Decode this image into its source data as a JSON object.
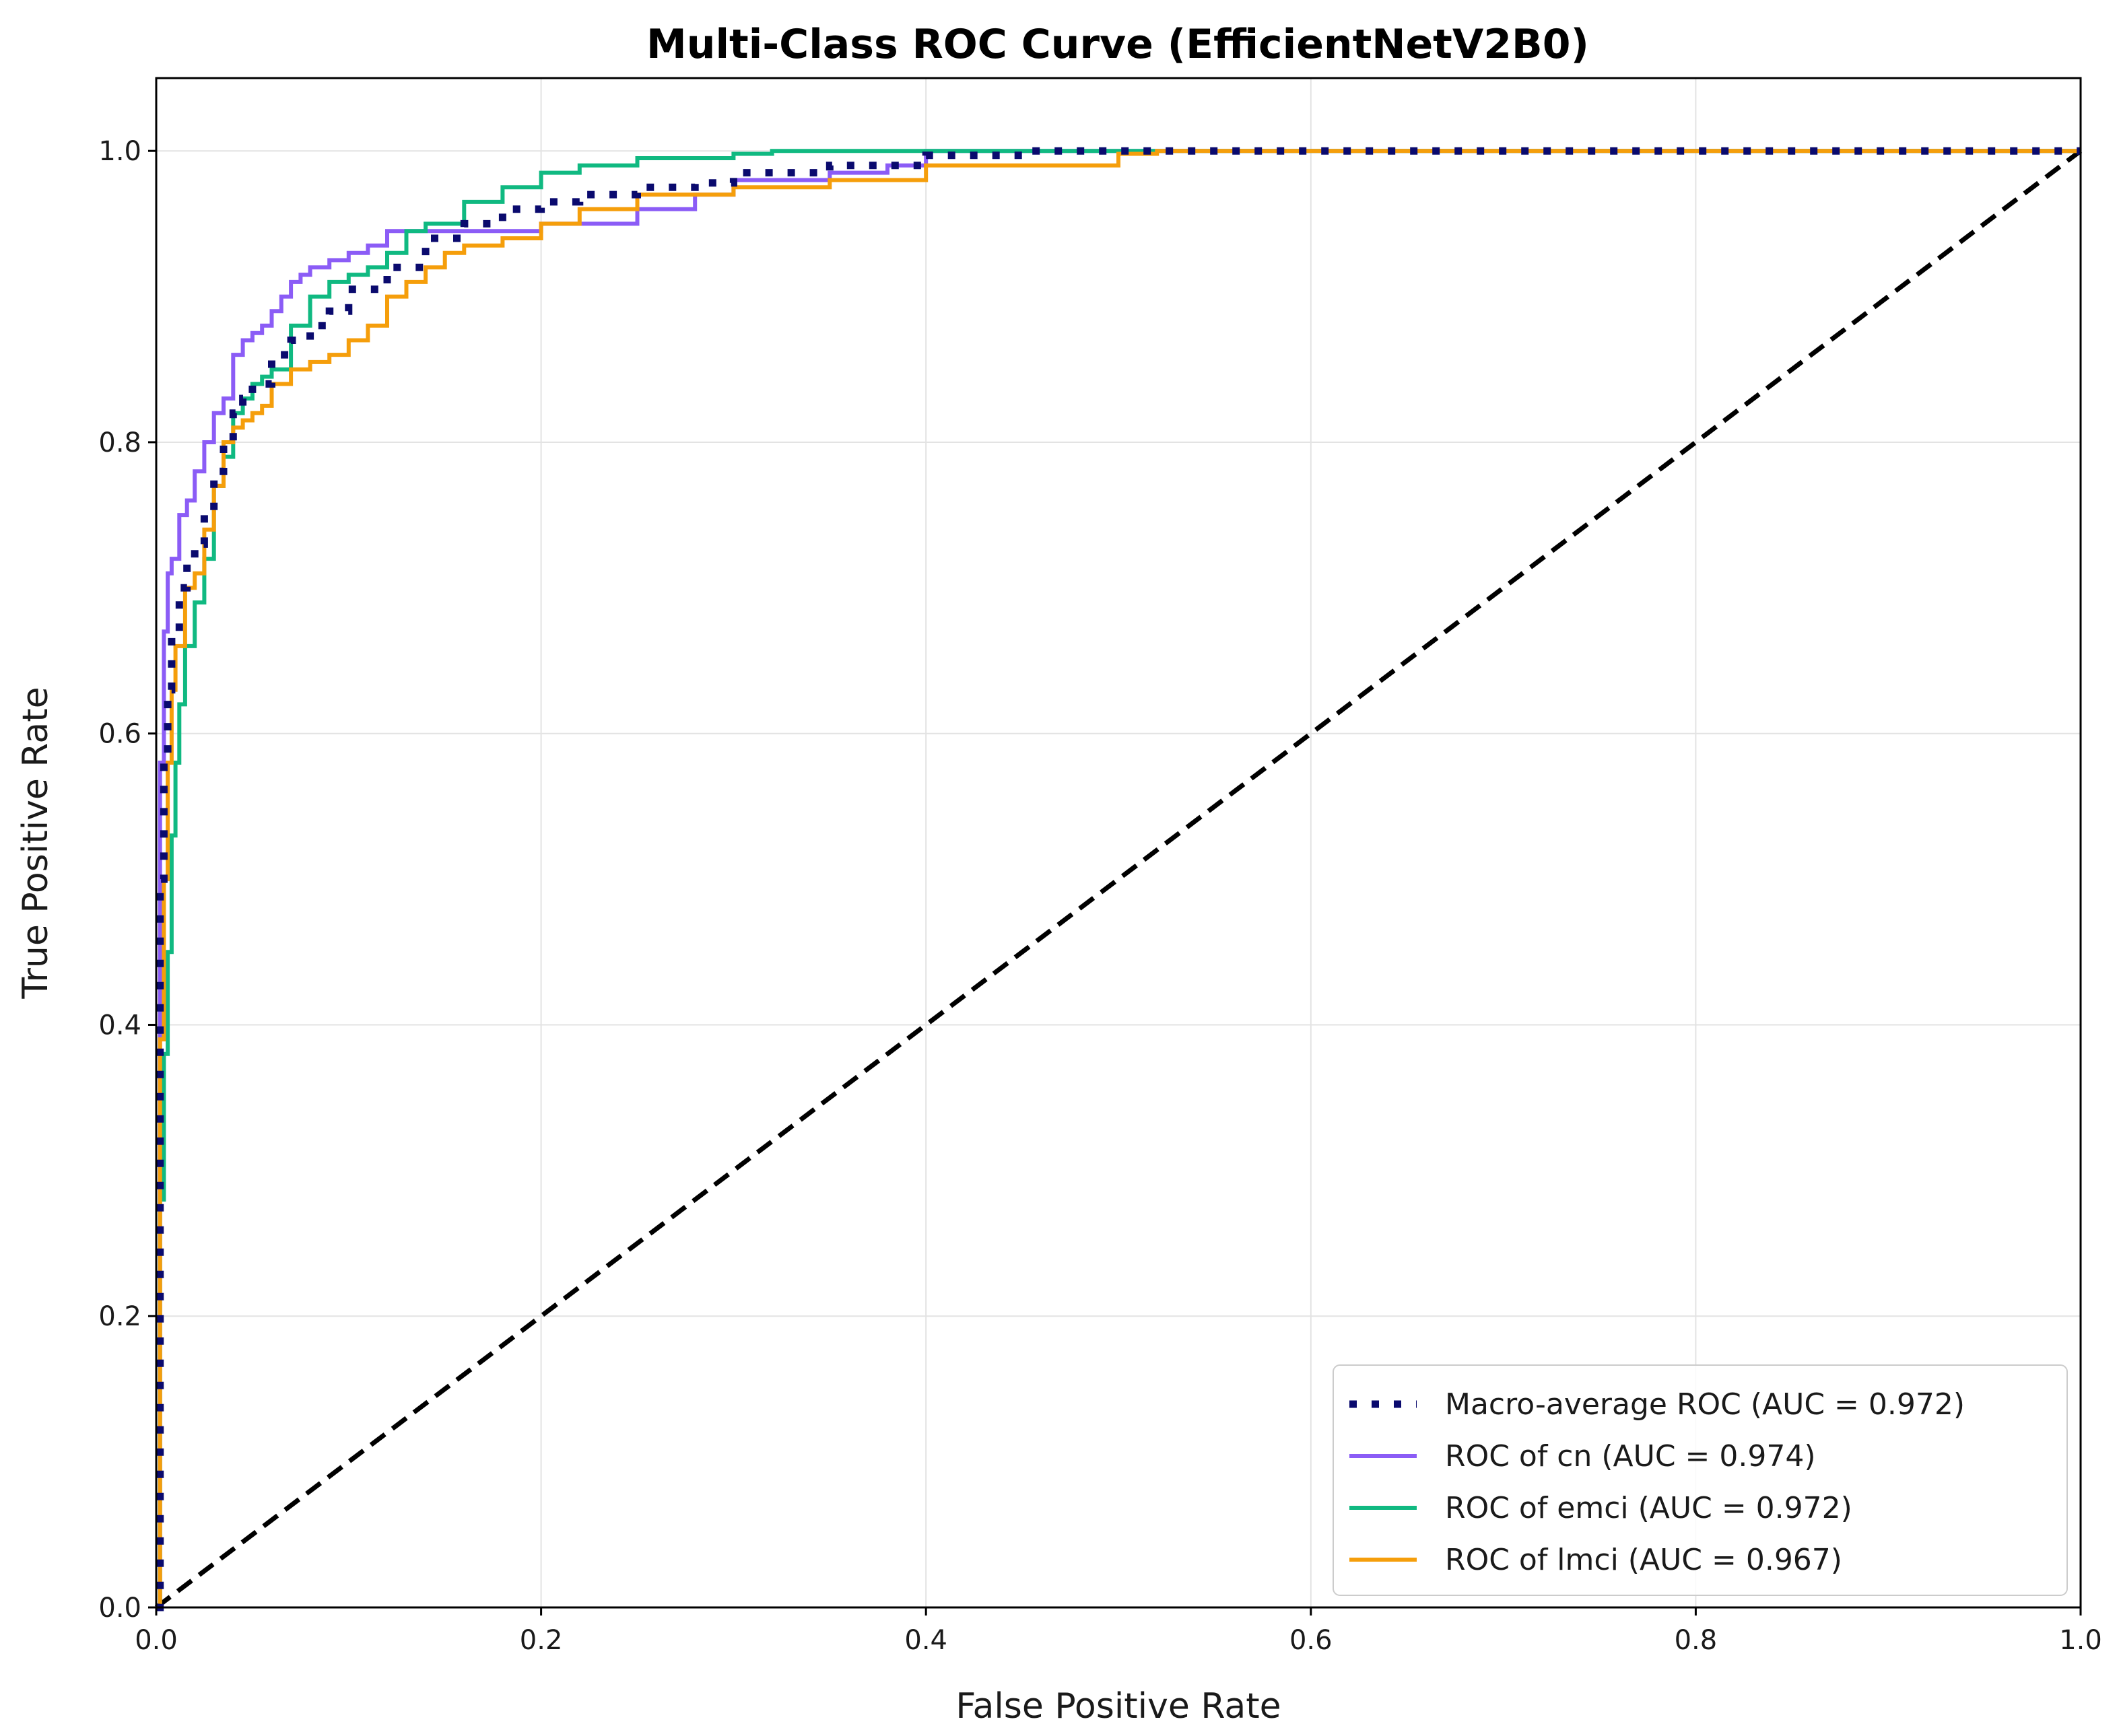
{
  "chart_data": {
    "type": "line",
    "title": "Multi-Class ROC Curve (EfficientNetV2B0)",
    "xlabel": "False Positive Rate",
    "ylabel": "True Positive Rate",
    "xlim": [
      0.0,
      1.0
    ],
    "ylim": [
      0.0,
      1.05
    ],
    "xticks": [
      0.0,
      0.2,
      0.4,
      0.6,
      0.8,
      1.0
    ],
    "yticks": [
      0.0,
      0.2,
      0.4,
      0.6,
      0.8,
      1.0
    ],
    "xtick_labels": [
      "0.0",
      "0.2",
      "0.4",
      "0.6",
      "0.8",
      "1.0"
    ],
    "ytick_labels": [
      "0.0",
      "0.2",
      "0.4",
      "0.6",
      "0.8",
      "1.0"
    ],
    "grid": true,
    "legend_position": "lower-right",
    "series": [
      {
        "name": "Macro-average ROC (AUC = 0.972)",
        "color": "#0a0a6e",
        "style": "dotted",
        "x": [
          0.0,
          0.002,
          0.004,
          0.006,
          0.008,
          0.012,
          0.016,
          0.02,
          0.025,
          0.03,
          0.035,
          0.04,
          0.045,
          0.05,
          0.06,
          0.07,
          0.08,
          0.09,
          0.1,
          0.12,
          0.14,
          0.16,
          0.18,
          0.2,
          0.22,
          0.25,
          0.28,
          0.3,
          0.35,
          0.4,
          0.45,
          0.5,
          0.6,
          0.8,
          1.0
        ],
        "y": [
          0.0,
          0.5,
          0.58,
          0.63,
          0.67,
          0.7,
          0.72,
          0.73,
          0.75,
          0.78,
          0.8,
          0.82,
          0.83,
          0.84,
          0.86,
          0.87,
          0.88,
          0.89,
          0.905,
          0.92,
          0.94,
          0.95,
          0.96,
          0.965,
          0.97,
          0.975,
          0.978,
          0.985,
          0.99,
          0.997,
          1.0,
          1.0,
          1.0,
          1.0,
          1.0
        ]
      },
      {
        "name": "ROC of cn (AUC = 0.974)",
        "color": "#8b5cf6",
        "style": "solid",
        "x": [
          0.0,
          0.002,
          0.004,
          0.006,
          0.008,
          0.012,
          0.016,
          0.02,
          0.025,
          0.03,
          0.035,
          0.04,
          0.045,
          0.05,
          0.055,
          0.06,
          0.065,
          0.07,
          0.075,
          0.08,
          0.09,
          0.1,
          0.11,
          0.12,
          0.13,
          0.15,
          0.2,
          0.25,
          0.28,
          0.3,
          0.35,
          0.38,
          0.4,
          0.5,
          0.6,
          0.8,
          1.0
        ],
        "y": [
          0.0,
          0.58,
          0.67,
          0.71,
          0.72,
          0.75,
          0.76,
          0.78,
          0.8,
          0.82,
          0.83,
          0.86,
          0.87,
          0.875,
          0.88,
          0.89,
          0.9,
          0.91,
          0.915,
          0.92,
          0.925,
          0.93,
          0.935,
          0.945,
          0.945,
          0.945,
          0.95,
          0.96,
          0.97,
          0.98,
          0.985,
          0.99,
          1.0,
          1.0,
          1.0,
          1.0,
          1.0
        ]
      },
      {
        "name": "ROC of emci (AUC = 0.972)",
        "color": "#10b981",
        "style": "solid",
        "x": [
          0.0,
          0.002,
          0.004,
          0.006,
          0.008,
          0.01,
          0.012,
          0.015,
          0.02,
          0.025,
          0.03,
          0.035,
          0.04,
          0.045,
          0.05,
          0.055,
          0.06,
          0.07,
          0.08,
          0.09,
          0.1,
          0.11,
          0.12,
          0.13,
          0.14,
          0.16,
          0.18,
          0.2,
          0.22,
          0.25,
          0.3,
          0.32,
          0.4,
          0.5,
          0.6,
          0.8,
          1.0
        ],
        "y": [
          0.0,
          0.28,
          0.38,
          0.45,
          0.53,
          0.58,
          0.62,
          0.66,
          0.69,
          0.72,
          0.77,
          0.79,
          0.82,
          0.83,
          0.84,
          0.845,
          0.85,
          0.88,
          0.9,
          0.91,
          0.915,
          0.92,
          0.93,
          0.945,
          0.95,
          0.965,
          0.975,
          0.985,
          0.99,
          0.995,
          0.998,
          1.0,
          1.0,
          1.0,
          1.0,
          1.0,
          1.0
        ]
      },
      {
        "name": "ROC of lmci (AUC = 0.967)",
        "color": "#f59e0b",
        "style": "solid",
        "x": [
          0.0,
          0.002,
          0.004,
          0.006,
          0.008,
          0.01,
          0.015,
          0.02,
          0.025,
          0.03,
          0.035,
          0.04,
          0.045,
          0.05,
          0.055,
          0.06,
          0.07,
          0.08,
          0.09,
          0.1,
          0.11,
          0.12,
          0.13,
          0.14,
          0.15,
          0.16,
          0.18,
          0.2,
          0.22,
          0.25,
          0.3,
          0.35,
          0.4,
          0.5,
          0.52,
          0.6,
          0.8,
          1.0
        ],
        "y": [
          0.0,
          0.39,
          0.5,
          0.58,
          0.63,
          0.66,
          0.7,
          0.71,
          0.74,
          0.77,
          0.8,
          0.81,
          0.815,
          0.82,
          0.825,
          0.84,
          0.85,
          0.855,
          0.86,
          0.87,
          0.88,
          0.9,
          0.91,
          0.92,
          0.93,
          0.935,
          0.94,
          0.95,
          0.96,
          0.97,
          0.975,
          0.98,
          0.99,
          0.998,
          1.0,
          1.0,
          1.0,
          1.0
        ]
      }
    ],
    "reference_line": {
      "color": "#000000",
      "style": "dashed",
      "x": [
        0.0,
        1.0
      ],
      "y": [
        0.0,
        1.0
      ]
    }
  }
}
